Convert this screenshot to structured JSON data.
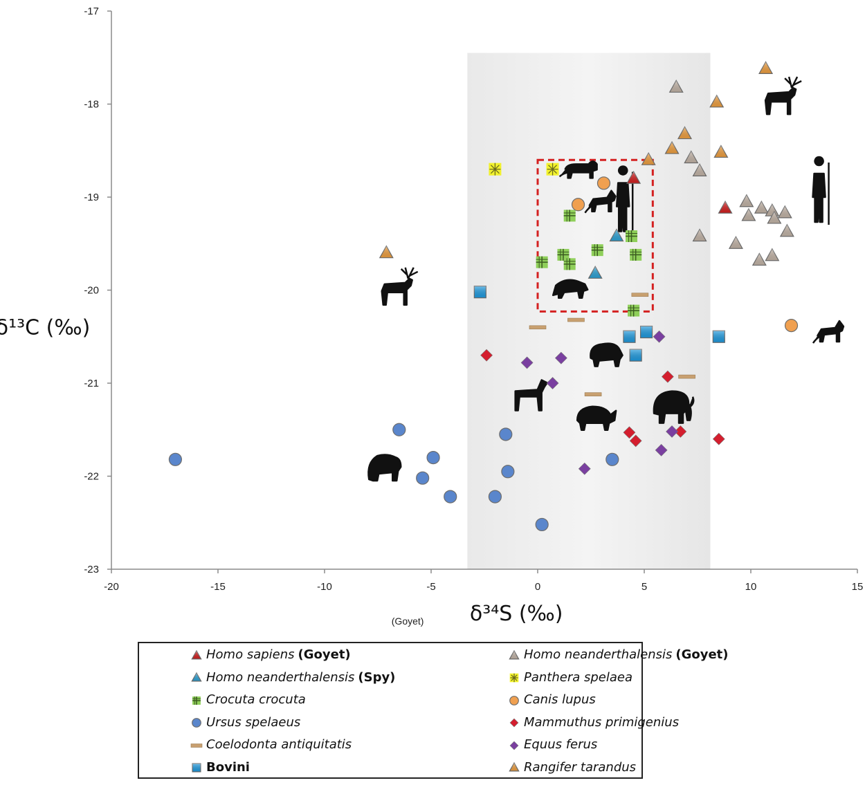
{
  "chart_data": {
    "type": "scatter",
    "title": "",
    "xlabel": "δ³⁴S (‰)",
    "ylabel": "δ¹³C (‰)",
    "xlim": [
      -20,
      15
    ],
    "ylim": [
      -23,
      -17
    ],
    "xticks": [
      -20,
      -15,
      -10,
      -5,
      0,
      5,
      10,
      15
    ],
    "yticks": [
      -23,
      -22,
      -21,
      -20,
      -19,
      -18,
      -17
    ],
    "grid": false,
    "legend_position": "bottom",
    "annotations": [
      {
        "text": "(Goyet)",
        "x": -6.1,
        "y": -23.55
      }
    ],
    "series": [
      {
        "key": "homo_sapiens",
        "name": "Homo sapiens",
        "location": "(Goyet)",
        "marker": "triangle",
        "color": "#d42020",
        "points": [
          [
            4.5,
            -18.8
          ],
          [
            8.8,
            -19.12
          ]
        ]
      },
      {
        "key": "neand_goyet",
        "name": "Homo neanderthalensis",
        "location": "(Goyet)",
        "marker": "triangle",
        "color": "#c4b5a8",
        "points": [
          [
            6.5,
            -17.82
          ],
          [
            7.2,
            -18.58
          ],
          [
            7.6,
            -18.72
          ],
          [
            7.6,
            -19.42
          ],
          [
            9.8,
            -19.05
          ],
          [
            10.5,
            -19.12
          ],
          [
            11.0,
            -19.15
          ],
          [
            11.6,
            -19.17
          ],
          [
            9.9,
            -19.2
          ],
          [
            11.1,
            -19.23
          ],
          [
            11.7,
            -19.37
          ],
          [
            9.3,
            -19.5
          ],
          [
            10.4,
            -19.68
          ],
          [
            11.0,
            -19.63
          ]
        ]
      },
      {
        "key": "neand_spy",
        "name": "Homo neanderthalensis",
        "location": "(Spy)",
        "marker": "triangle",
        "color": "#2ea3d6",
        "points": [
          [
            3.7,
            -19.42
          ],
          [
            2.7,
            -19.82
          ]
        ]
      },
      {
        "key": "panthera",
        "name": "Panthera spelaea",
        "location": "",
        "marker": "star",
        "color": "#f2f20a",
        "points": [
          [
            -2.0,
            -18.7
          ],
          [
            0.7,
            -18.7
          ]
        ]
      },
      {
        "key": "crocuta",
        "name": "Crocuta crocuta",
        "location": "",
        "marker": "square-plus",
        "color": "#8fcf5a",
        "points": [
          [
            1.5,
            -19.2
          ],
          [
            4.4,
            -19.42
          ],
          [
            2.8,
            -19.57
          ],
          [
            4.6,
            -19.62
          ],
          [
            1.2,
            -19.62
          ],
          [
            0.2,
            -19.7
          ],
          [
            1.5,
            -19.72
          ],
          [
            4.5,
            -20.22
          ]
        ]
      },
      {
        "key": "canis",
        "name": "Canis lupus",
        "location": "",
        "marker": "circle",
        "color": "#f0a050",
        "points": [
          [
            3.1,
            -18.85
          ],
          [
            1.9,
            -19.08
          ],
          [
            11.9,
            -20.38
          ]
        ]
      },
      {
        "key": "ursus",
        "name": "Ursus spelaeus",
        "location": "",
        "marker": "circle",
        "color": "#5a86cc",
        "points": [
          [
            -17.0,
            -21.82
          ],
          [
            -6.5,
            -21.5
          ],
          [
            -4.9,
            -21.8
          ],
          [
            -5.4,
            -22.02
          ],
          [
            -4.1,
            -22.22
          ],
          [
            -1.5,
            -21.55
          ],
          [
            -1.4,
            -21.95
          ],
          [
            -2.0,
            -22.22
          ],
          [
            0.2,
            -22.52
          ],
          [
            3.5,
            -21.82
          ]
        ]
      },
      {
        "key": "mammuthus",
        "name": "Mammuthus primigenius",
        "location": "",
        "marker": "diamond",
        "color": "#d41e2e",
        "points": [
          [
            -2.4,
            -20.7
          ],
          [
            6.1,
            -20.93
          ],
          [
            4.3,
            -21.53
          ],
          [
            4.6,
            -21.62
          ],
          [
            6.7,
            -21.52
          ],
          [
            8.5,
            -21.6
          ]
        ]
      },
      {
        "key": "coelodonta",
        "name": "Coelodonta antiquitatis",
        "location": "",
        "marker": "dash",
        "color": "#c8a070",
        "points": [
          [
            4.8,
            -20.05
          ],
          [
            1.8,
            -20.32
          ],
          [
            0.0,
            -20.4
          ],
          [
            7.0,
            -20.93
          ],
          [
            2.6,
            -21.12
          ]
        ]
      },
      {
        "key": "equus",
        "name": "Equus ferus",
        "location": "",
        "marker": "diamond",
        "color": "#7a3fa0",
        "points": [
          [
            5.7,
            -20.5
          ],
          [
            -0.5,
            -20.78
          ],
          [
            1.1,
            -20.73
          ],
          [
            0.7,
            -21.0
          ],
          [
            6.3,
            -21.52
          ],
          [
            2.2,
            -21.92
          ],
          [
            5.8,
            -21.72
          ]
        ]
      },
      {
        "key": "bovini",
        "name": "Bovini",
        "location": "",
        "marker": "square",
        "color": "#1f9be0",
        "points": [
          [
            -2.7,
            -20.02
          ],
          [
            4.3,
            -20.5
          ],
          [
            5.1,
            -20.45
          ],
          [
            4.6,
            -20.7
          ],
          [
            8.5,
            -20.5
          ]
        ]
      },
      {
        "key": "rangifer",
        "name": "Rangifer tarandus",
        "location": "",
        "marker": "triangle",
        "color": "#f0a040",
        "points": [
          [
            10.7,
            -17.62
          ],
          [
            8.4,
            -17.98
          ],
          [
            6.9,
            -18.32
          ],
          [
            6.3,
            -18.48
          ],
          [
            8.6,
            -18.52
          ],
          [
            5.2,
            -18.6
          ],
          [
            -7.1,
            -19.6
          ]
        ]
      }
    ],
    "shaded_region": {
      "x": [
        -3.3,
        8.1
      ],
      "y": [
        -23,
        -17.45
      ],
      "color": "#e8e8e8"
    },
    "highlight_box": {
      "x": [
        0.0,
        5.4
      ],
      "y": [
        -20.23,
        -18.6
      ],
      "color": "#d42020",
      "style": "dashed"
    }
  },
  "legend": {
    "left": [
      {
        "key": "homo_sapiens"
      },
      {
        "key": "neand_spy"
      },
      {
        "key": "crocuta"
      },
      {
        "key": "ursus"
      },
      {
        "key": "coelodonta"
      },
      {
        "key": "bovini",
        "bold": true
      }
    ],
    "right": [
      {
        "key": "neand_goyet"
      },
      {
        "key": "panthera"
      },
      {
        "key": "canis"
      },
      {
        "key": "mammuthus"
      },
      {
        "key": "equus"
      },
      {
        "key": "rangifer"
      }
    ]
  },
  "silhouettes": [
    {
      "icon": "reindeer-icon",
      "x": -6.6,
      "y": -19.98
    },
    {
      "icon": "reindeer-icon",
      "x": 11.4,
      "y": -17.93
    },
    {
      "icon": "human-icon",
      "x": 13.2,
      "y": -19.0
    },
    {
      "icon": "lion-icon",
      "x": 2.0,
      "y": -18.72
    },
    {
      "icon": "wolf-icon",
      "x": 3.0,
      "y": -19.05
    },
    {
      "icon": "human-icon",
      "x": 4.0,
      "y": -19.1
    },
    {
      "icon": "hyena-icon",
      "x": 1.5,
      "y": -19.98
    },
    {
      "icon": "wolf-icon",
      "x": 13.7,
      "y": -20.45
    },
    {
      "icon": "bison-icon",
      "x": 3.2,
      "y": -20.7
    },
    {
      "icon": "horse-icon",
      "x": -0.4,
      "y": -21.1
    },
    {
      "icon": "rhino-icon",
      "x": 2.7,
      "y": -21.37
    },
    {
      "icon": "mammoth-icon",
      "x": 6.3,
      "y": -21.25
    },
    {
      "icon": "bear-icon",
      "x": -7.2,
      "y": -21.9
    }
  ]
}
